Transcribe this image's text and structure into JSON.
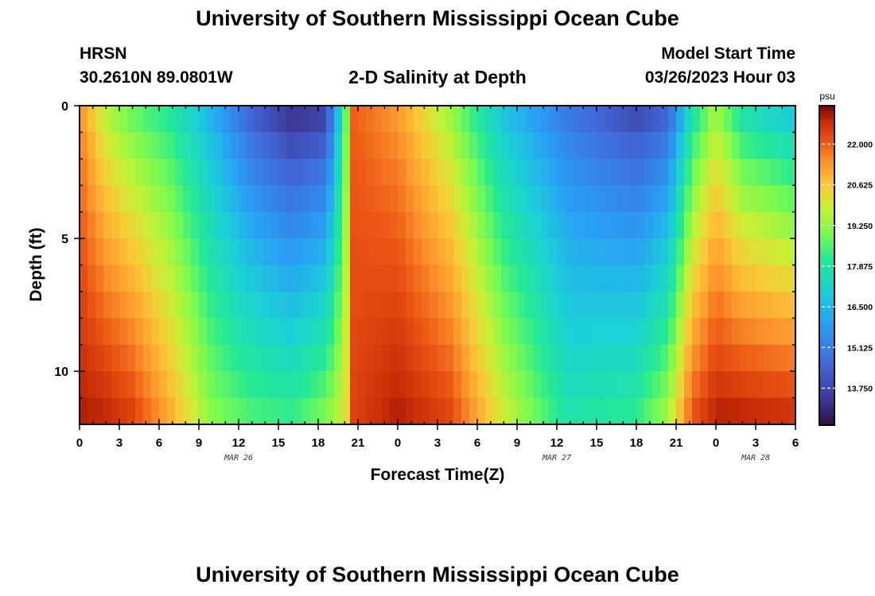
{
  "header": {
    "title": "University of Southern Mississippi Ocean Cube",
    "station": "HRSN",
    "coordinates": "30.2610N  89.0801W",
    "subtitle": "2-D Salinity at Depth",
    "model_start_label": "Model Start Time",
    "model_start_value": "03/26/2023 Hour 03"
  },
  "footer": {
    "title": "University of Southern Mississippi Ocean Cube"
  },
  "colors": {
    "frame": "#000000",
    "background": "#ffffff"
  },
  "chart_data": {
    "type": "heatmap",
    "title": "2-D Salinity at Depth",
    "xlabel": "Forecast Time(Z)",
    "ylabel": "Depth (ft)",
    "x_range_hours": [
      0,
      54
    ],
    "ylim": [
      0,
      12
    ],
    "y_direction": "down",
    "x_ticks": [
      {
        "hour": 0,
        "label": "0"
      },
      {
        "hour": 3,
        "label": "3"
      },
      {
        "hour": 6,
        "label": "6"
      },
      {
        "hour": 9,
        "label": "9"
      },
      {
        "hour": 12,
        "label": "12"
      },
      {
        "hour": 15,
        "label": "15"
      },
      {
        "hour": 18,
        "label": "18"
      },
      {
        "hour": 21,
        "label": "21"
      },
      {
        "hour": 24,
        "label": "0"
      },
      {
        "hour": 27,
        "label": "3"
      },
      {
        "hour": 30,
        "label": "6"
      },
      {
        "hour": 33,
        "label": "9"
      },
      {
        "hour": 36,
        "label": "12"
      },
      {
        "hour": 39,
        "label": "15"
      },
      {
        "hour": 42,
        "label": "18"
      },
      {
        "hour": 45,
        "label": "21"
      },
      {
        "hour": 48,
        "label": "0"
      },
      {
        "hour": 51,
        "label": "3"
      },
      {
        "hour": 54,
        "label": "6"
      }
    ],
    "date_labels": [
      {
        "hour": 12,
        "label": "MAR 26"
      },
      {
        "hour": 36,
        "label": "MAR 27"
      },
      {
        "hour": 51,
        "label": "MAR 28"
      }
    ],
    "y_ticks": [
      {
        "value": 0,
        "label": "0"
      },
      {
        "value": 5,
        "label": "5"
      },
      {
        "value": 10,
        "label": "10"
      }
    ],
    "colorbar": {
      "unit": "psu",
      "min": 12.5,
      "max": 23.3,
      "ticks": [
        "22.000",
        "20.625",
        "19.250",
        "17.875",
        "16.500",
        "15.125",
        "13.750"
      ],
      "tick_values": [
        22.0,
        20.625,
        19.25,
        17.875,
        16.5,
        15.125,
        13.75
      ]
    },
    "grid": {
      "depth_levels": 12,
      "time_columns": 90,
      "surface_salinity_profile": [
        {
          "hour": 0,
          "surface": 21.4,
          "bottom": 23.0
        },
        {
          "hour": 2,
          "surface": 19.5,
          "bottom": 22.9
        },
        {
          "hour": 4,
          "surface": 18.6,
          "bottom": 22.5
        },
        {
          "hour": 7,
          "surface": 17.8,
          "bottom": 21.0
        },
        {
          "hour": 10,
          "surface": 16.2,
          "bottom": 19.2
        },
        {
          "hour": 13,
          "surface": 14.2,
          "bottom": 18.6
        },
        {
          "hour": 16,
          "surface": 13.0,
          "bottom": 18.4
        },
        {
          "hour": 18.6,
          "surface": 13.4,
          "bottom": 19.2
        },
        {
          "hour": 19.6,
          "surface": 16.8,
          "bottom": 19.8
        },
        {
          "hour": 20.3,
          "surface": 19.5,
          "bottom": 20.5
        },
        {
          "hour": 20.6,
          "surface": 22.0,
          "bottom": 22.4
        },
        {
          "hour": 24,
          "surface": 21.2,
          "bottom": 23.0
        },
        {
          "hour": 28,
          "surface": 19.2,
          "bottom": 22.4
        },
        {
          "hour": 32,
          "surface": 16.6,
          "bottom": 20.0
        },
        {
          "hour": 37,
          "surface": 14.8,
          "bottom": 17.8
        },
        {
          "hour": 42,
          "surface": 13.6,
          "bottom": 18.3
        },
        {
          "hour": 44.4,
          "surface": 14.2,
          "bottom": 19.6
        },
        {
          "hour": 46.2,
          "surface": 17.5,
          "bottom": 22.2
        },
        {
          "hour": 48,
          "surface": 19.3,
          "bottom": 23.0
        },
        {
          "hour": 50,
          "surface": 17.5,
          "bottom": 23.0
        },
        {
          "hour": 54,
          "surface": 16.5,
          "bottom": 22.8
        }
      ]
    }
  }
}
